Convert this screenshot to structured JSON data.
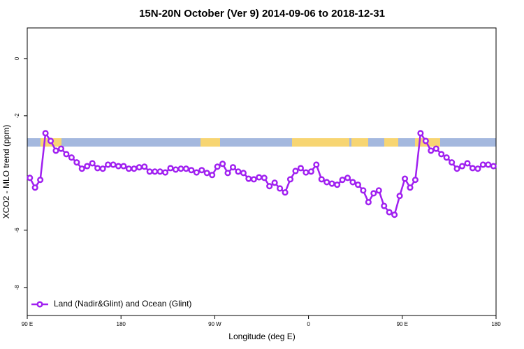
{
  "chart_data": {
    "type": "line",
    "title": "15N-20N October (Ver 9)   2014-09-06 to 2018-12-31",
    "x_label": "Longitude (deg E)",
    "y_label": "XCO2 - MLO trend (ppm)",
    "x": [
      92.5,
      97.5,
      102.5,
      107.5,
      112.5,
      117.5,
      122.5,
      127.5,
      132.5,
      137.5,
      142.5,
      147.5,
      152.5,
      157.5,
      162.5,
      167.5,
      172.5,
      177.5,
      182.5,
      187.5,
      192.5,
      197.5,
      202.5,
      207.5,
      212.5,
      217.5,
      222.5,
      227.5,
      232.5,
      237.5,
      242.5,
      247.5,
      252.5,
      257.5,
      262.5,
      267.5,
      272.5,
      277.5,
      282.5,
      287.5,
      292.5,
      297.5,
      302.5,
      307.5,
      312.5,
      317.5,
      322.5,
      327.5,
      332.5,
      337.5,
      342.5,
      347.5,
      352.5,
      357.5,
      362.5,
      367.5,
      372.5,
      377.5,
      382.5,
      387.5,
      392.5,
      397.5,
      402.5,
      407.5,
      412.5,
      417.5,
      422.5,
      427.5,
      432.5,
      437.5,
      442.5,
      447.5,
      452.5,
      457.5,
      462.5,
      467.5,
      472.5,
      477.5,
      482.5,
      487.5,
      492.5,
      497.5,
      502.5,
      507.5,
      512.5,
      517.5,
      522.5,
      527.5,
      532.5,
      537.5
    ],
    "series": [
      {
        "name": "Land (Nadir&Glint) and Ocean (Glint)",
        "color": "#a020f0",
        "values": [
          -4.17,
          -4.51,
          -4.24,
          -2.61,
          -2.88,
          -3.22,
          -3.15,
          -3.34,
          -3.46,
          -3.63,
          -3.85,
          -3.76,
          -3.66,
          -3.83,
          -3.85,
          -3.71,
          -3.71,
          -3.76,
          -3.76,
          -3.85,
          -3.85,
          -3.8,
          -3.78,
          -3.95,
          -3.95,
          -3.95,
          -3.98,
          -3.83,
          -3.88,
          -3.85,
          -3.85,
          -3.9,
          -3.98,
          -3.9,
          -4.0,
          -4.07,
          -3.78,
          -3.68,
          -4.0,
          -3.8,
          -3.95,
          -4.0,
          -4.2,
          -4.22,
          -4.15,
          -4.17,
          -4.46,
          -4.34,
          -4.54,
          -4.68,
          -4.22,
          -3.93,
          -3.83,
          -3.98,
          -3.95,
          -3.71,
          -4.22,
          -4.32,
          -4.37,
          -4.41,
          -4.24,
          -4.17,
          -4.32,
          -4.41,
          -4.61,
          -5.02,
          -4.71,
          -4.61,
          -5.15,
          -5.37,
          -5.46,
          -4.8,
          -4.2,
          -4.51,
          -4.24,
          -2.61,
          -2.88,
          -3.22,
          -3.15,
          -3.34,
          -3.46,
          -3.63,
          -3.85,
          -3.76,
          -3.66,
          -3.83,
          -3.85,
          -3.71,
          -3.71,
          -3.76
        ]
      }
    ],
    "xlim": [
      90,
      540
    ],
    "xticks": [
      {
        "value": 90,
        "label": "90 E"
      },
      180,
      {
        "value": 270,
        "label": "90 W"
      },
      {
        "value": 360,
        "label": "0"
      },
      {
        "value": 450,
        "label": "90 E"
      },
      {
        "value": 540,
        "label": "180"
      }
    ],
    "ylim": [
      -8.98,
      1.07
    ],
    "yticks": [
      0,
      -2,
      -6,
      -8
    ],
    "legend": "bottom-left"
  }
}
